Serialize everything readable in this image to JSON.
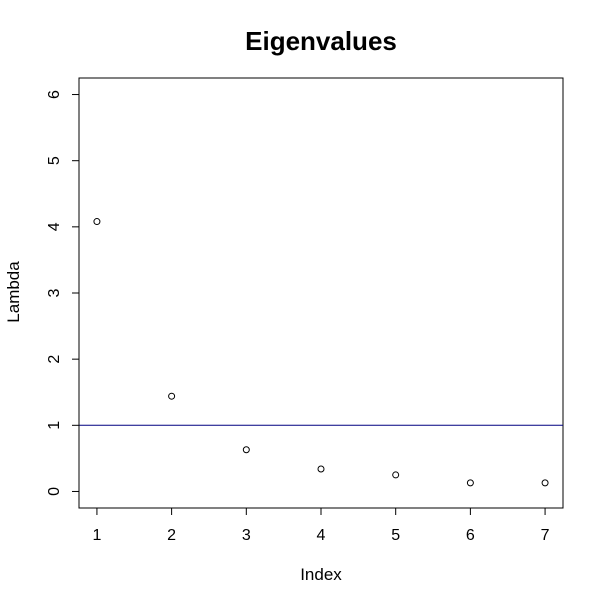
{
  "chart_data": {
    "type": "scatter",
    "title": "Eigenvalues",
    "xlabel": "Index",
    "ylabel": "Lambda",
    "x": [
      1,
      2,
      3,
      4,
      5,
      6,
      7
    ],
    "y": [
      4.08,
      1.44,
      0.63,
      0.34,
      0.25,
      0.13,
      0.13
    ],
    "xlim": [
      0.76,
      7.24
    ],
    "ylim": [
      -0.25,
      6.25
    ],
    "xticks": [
      1,
      2,
      3,
      4,
      5,
      6,
      7
    ],
    "yticks": [
      0,
      1,
      2,
      3,
      4,
      5,
      6
    ],
    "reference_line": {
      "orientation": "horizontal",
      "y": 1,
      "color": "#000080"
    },
    "grid": false,
    "legend": "none",
    "colors": {
      "points": "#000000",
      "axes": "#000000"
    }
  }
}
